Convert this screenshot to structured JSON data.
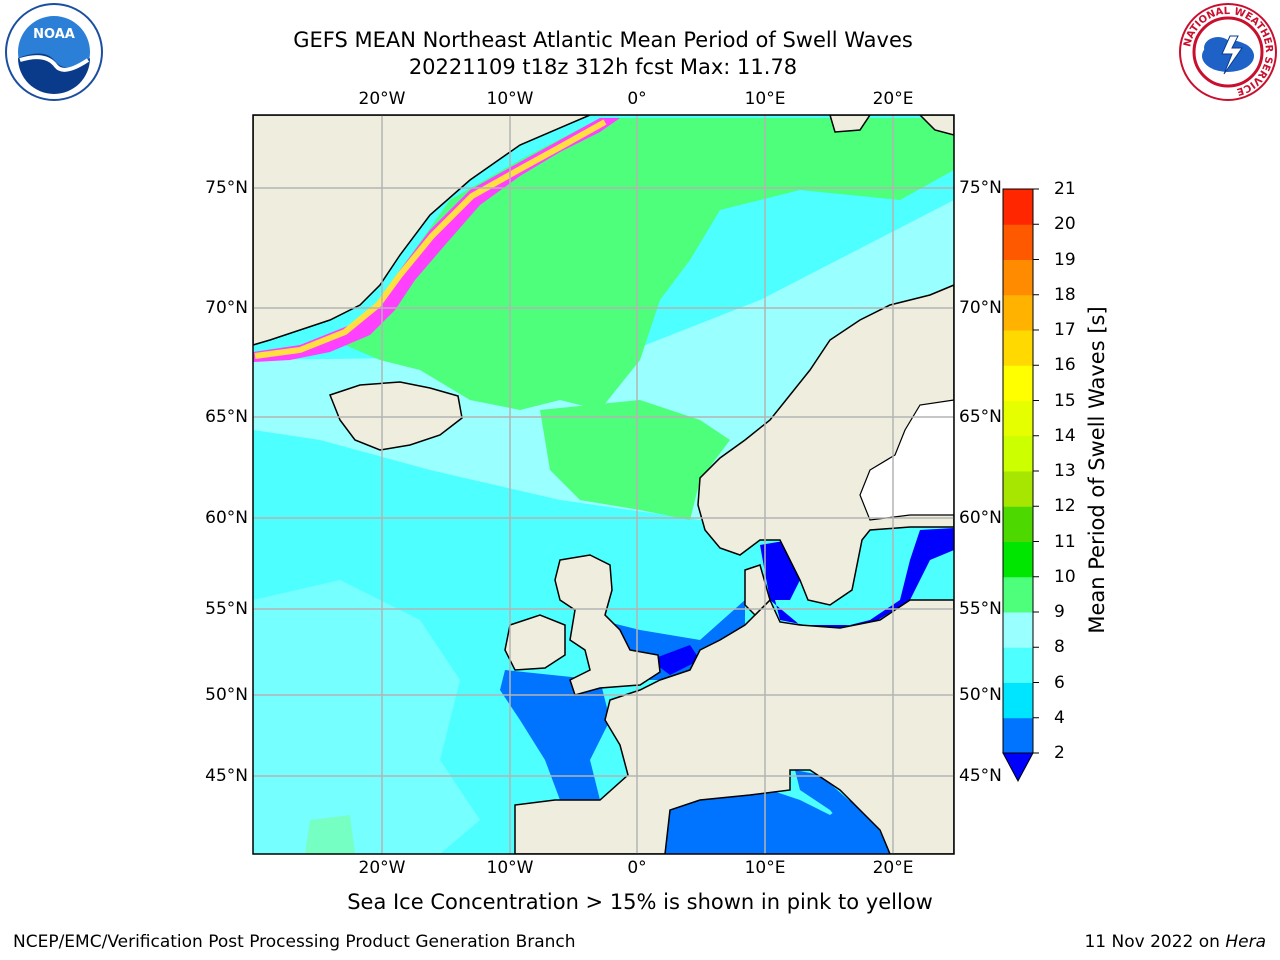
{
  "header": {
    "title_line1": "GEFS MEAN Northeast Atlantic Mean Period of Swell Waves",
    "title_line2": "20221109 t18z 312h fcst   Max: 11.78"
  },
  "logos": {
    "noaa": "NOAA",
    "nws": "NATIONAL WEATHER SERVICE"
  },
  "map": {
    "projection": "PlateCarree",
    "lon_range": [
      -30,
      25
    ],
    "lat_range": [
      41,
      78
    ],
    "lon_ticks": [
      {
        "value": -20,
        "label": "20°W"
      },
      {
        "value": -10,
        "label": "10°W"
      },
      {
        "value": 0,
        "label": "0°"
      },
      {
        "value": 10,
        "label": "10°E"
      },
      {
        "value": 20,
        "label": "20°E"
      }
    ],
    "lat_ticks": [
      {
        "value": 75,
        "label": "75°N"
      },
      {
        "value": 70,
        "label": "70°N"
      },
      {
        "value": 65,
        "label": "65°N"
      },
      {
        "value": 60,
        "label": "60°N"
      },
      {
        "value": 55,
        "label": "55°N"
      },
      {
        "value": 50,
        "label": "50°N"
      },
      {
        "value": 45,
        "label": "45°N"
      }
    ],
    "colors": {
      "land": "#efedde",
      "ocean_base": "#4dffff",
      "grid": "#b4b4b4",
      "ice_pink": "#ff40ff",
      "ice_yellow": "#ffe040"
    }
  },
  "colorbar": {
    "title": "Mean Period of Swell Waves [s]",
    "ticks": [
      "2",
      "4",
      "6",
      "8",
      "9",
      "10",
      "11",
      "12",
      "13",
      "14",
      "15",
      "16",
      "17",
      "18",
      "19",
      "20",
      "21"
    ],
    "colors": [
      "#0073ff",
      "#00e5ff",
      "#4dffff",
      "#99ffff",
      "#4dff7a",
      "#00e600",
      "#4dd900",
      "#a6e600",
      "#ccff00",
      "#e6ff00",
      "#ffff00",
      "#ffd900",
      "#ffb300",
      "#ff8c00",
      "#ff5900",
      "#ff2600",
      "#ff0000"
    ],
    "under_color": "#0000ff"
  },
  "footer": {
    "note": "Sea Ice Concentration > 15% is shown in pink to yellow",
    "credit_left": "NCEP/EMC/Verification Post Processing Product Generation Branch",
    "credit_right_prefix": "11 Nov 2022 on ",
    "credit_right_host": "Hera"
  }
}
